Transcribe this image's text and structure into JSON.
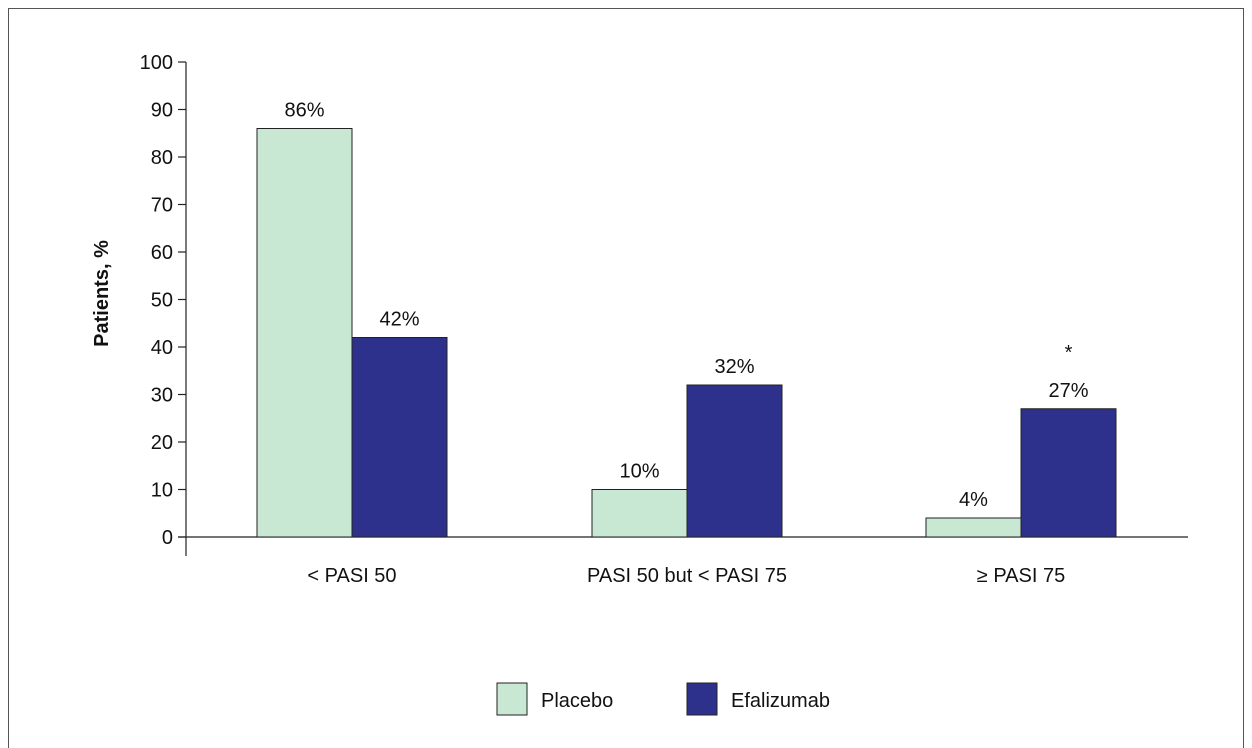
{
  "chart_data": {
    "type": "bar",
    "title": "",
    "xlabel": "",
    "ylabel": "Patients, %",
    "ylim": [
      0,
      100
    ],
    "yticks": [
      0,
      10,
      20,
      30,
      40,
      50,
      60,
      70,
      80,
      90,
      100
    ],
    "categories": [
      "< PASI 50",
      "PASI 50 but < PASI 75",
      "≥ PASI 75"
    ],
    "series": [
      {
        "name": "Placebo",
        "values": [
          86,
          10,
          4
        ],
        "labels": [
          "86%",
          "10%",
          "4%"
        ],
        "color": "#c8e8d4"
      },
      {
        "name": "Efalizumab",
        "values": [
          42,
          32,
          27
        ],
        "labels": [
          "42%",
          "32%",
          "27%"
        ],
        "color": "#2e318c"
      }
    ],
    "annotations": [
      {
        "text": "*",
        "category_index": 2,
        "series_index": 1
      }
    ],
    "legend": {
      "placement": "bottom-center"
    },
    "grid": false
  }
}
